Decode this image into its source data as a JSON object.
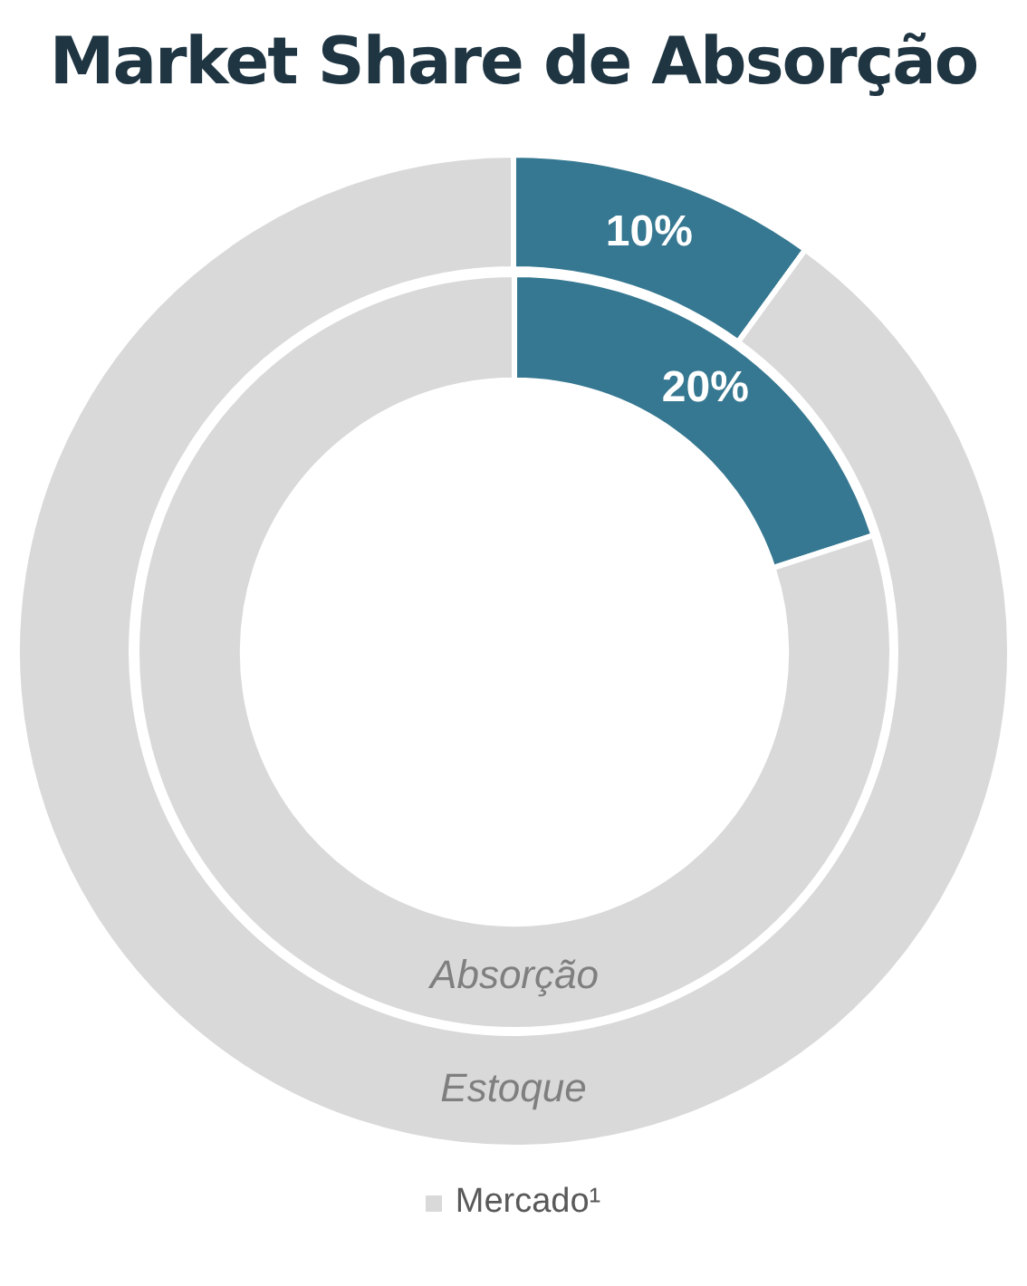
{
  "chart_data": [
    {
      "type": "donut",
      "title": "Market Share de Absorção",
      "categories": [
        null,
        "Mercado¹"
      ],
      "legend": "bottom",
      "values": [
        10,
        90
      ],
      "colors": [
        "#367891",
        "#d9d9d9"
      ],
      "value_labels": [
        "10%",
        null
      ],
      "annotations": [
        "Estoque"
      ]
    },
    {
      "type": "donut",
      "categories": [
        null,
        null
      ],
      "values": [
        20,
        80
      ],
      "colors": [
        "#367891",
        "#d9d9d9"
      ],
      "value_labels": [
        "20%",
        null
      ],
      "annotations": [
        "Absorção"
      ]
    }
  ]
}
